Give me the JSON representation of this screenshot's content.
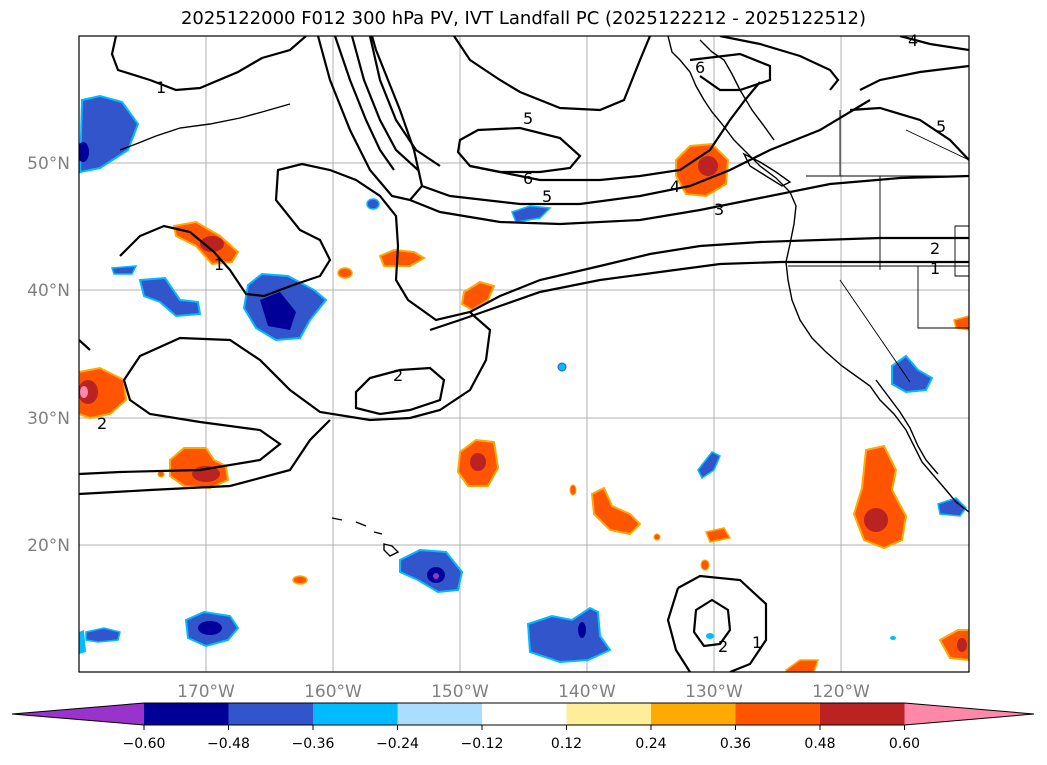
{
  "title": "2025122000 F012 300 hPa PV, IVT Landfall PC (2025122212 - 2025122512)",
  "map": {
    "lat_labels": [
      "50°N",
      "40°N",
      "30°N",
      "20°N"
    ],
    "lon_labels": [
      "170°W",
      "160°W",
      "150°W",
      "140°W",
      "130°W",
      "120°W"
    ],
    "contour_labels": [
      "1",
      "5",
      "6",
      "6",
      "5",
      "4",
      "3",
      "2",
      "1",
      "2",
      "2",
      "2",
      "1",
      "1",
      "5",
      "4"
    ]
  },
  "colorbar": {
    "colors": [
      "#9933cc",
      "#000099",
      "#3355cc",
      "#00bbff",
      "#aaddff",
      "#ffffff",
      "#ffee99",
      "#ffaa00",
      "#ff5500",
      "#bb2222",
      "#ff88aa"
    ],
    "tick_labels": [
      "−0.60",
      "−0.48",
      "−0.36",
      "−0.24",
      "−0.12",
      "0.12",
      "0.24",
      "0.36",
      "0.48",
      "0.60"
    ]
  }
}
